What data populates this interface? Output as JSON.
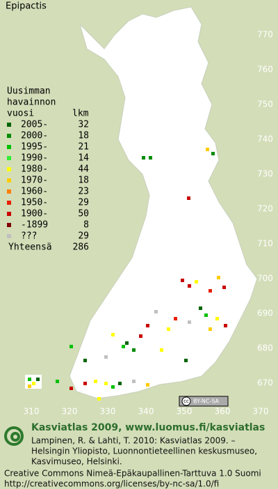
{
  "title": "Epipactis",
  "legend": {
    "heading": [
      "Uusimman",
      "havainnon",
      "vuosi"
    ],
    "count_heading": "lkm",
    "entries": [
      {
        "label": "2005-",
        "count": 32,
        "color": "#006400"
      },
      {
        "label": "2000-",
        "count": 18,
        "color": "#008c00"
      },
      {
        "label": "1995-",
        "count": 21,
        "color": "#00c000"
      },
      {
        "label": "1990-",
        "count": 14,
        "color": "#33ee33"
      },
      {
        "label": "1980-",
        "count": 44,
        "color": "#ffff00"
      },
      {
        "label": "1970-",
        "count": 18,
        "color": "#ffcc00"
      },
      {
        "label": "1960-",
        "count": 23,
        "color": "#ff8000"
      },
      {
        "label": "1950-",
        "count": 29,
        "color": "#e82000"
      },
      {
        "label": "1900-",
        "count": 50,
        "color": "#c80000"
      },
      {
        "label": "-1899",
        "count": 8,
        "color": "#800000"
      },
      {
        "label": "???",
        "count": 29,
        "color": "#c0c0c0"
      }
    ],
    "total_label": "Yhteensä",
    "total": 286
  },
  "map": {
    "yticks": [
      770,
      760,
      750,
      740,
      730,
      720,
      710,
      700,
      690,
      680,
      670
    ],
    "xticks": [
      310,
      320,
      330,
      340,
      350,
      360,
      370
    ]
  },
  "badge": {
    "cc": "cc",
    "label": "BY-NC-SA"
  },
  "footer": {
    "title": "Kasviatlas 2009, www.luomus.fi/kasviatlas",
    "citation": [
      "Lampinen, R. & Lahti, T. 2010: Kasviatlas 2009. –",
      "Helsingin Yliopisto, Luonnontieteellinen keskusmuseo,",
      "Kasvimuseo, Helsinki."
    ],
    "license": [
      "Creative Commons Nimeä-Epäkaupallinen-Tarttuva 1.0 Suomi",
      "http://creativecommons.org/licenses/by-nc-sa/1.0/fi"
    ]
  }
}
